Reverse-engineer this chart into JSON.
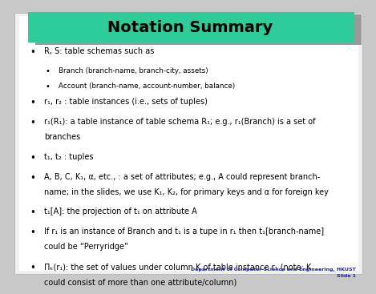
{
  "title": "Notation Summary",
  "title_bg_color": "#2ECC9A",
  "title_shadow_color": "#999999",
  "bg_color": "#C8C8C8",
  "slide_bg_color": "#F0F0F0",
  "inner_bg_color": "#FFFFFF",
  "title_font_color": "#000000",
  "body_font_color": "#000000",
  "footer_color": "#2222AA",
  "footer_line1": "Department of Computer Science and Engineering, HKUST",
  "footer_line2": "Slide 1",
  "title_fontsize": 14,
  "body_fontsize": 7.0,
  "sub_fontsize": 6.3,
  "footer_fontsize": 4.5,
  "bullet_items": [
    {
      "level": 1,
      "text": "R, S: table schemas such as"
    },
    {
      "level": 2,
      "text": "Branch (branch-name, branch-city, assets)"
    },
    {
      "level": 2,
      "text": "Account (branch-name, account-number, balance)"
    },
    {
      "level": 1,
      "text": "r₁, r₂ : table instances (i.e., sets of tuples)"
    },
    {
      "level": 1,
      "text": "r₁(R₁): a table instance of table schema R₁; e.g., r₁(Branch) is a set of\nbranches"
    },
    {
      "level": 1,
      "text": "t₁, t₂ : tuples"
    },
    {
      "level": 1,
      "text": "A, B, C, K₁, α, etc., : a set of attributes; e.g., A could represent branch-\nname; in the slides, we use K₁, K₂, for primary keys and α for foreign key"
    },
    {
      "level": 1,
      "text": "t₁[A]: the projection of t₁ on attribute A"
    },
    {
      "level": 1,
      "text": "If r₁ is an instance of Branch and t₁ is a tupe in r₁ then t₁[branch-name]\ncould be “Perryridge”"
    },
    {
      "level": 1,
      "text": "Πₖ(r₁): the set of values under column K of table instance r₁ (note: K\ncould consist of more than one attribute/column)"
    }
  ]
}
